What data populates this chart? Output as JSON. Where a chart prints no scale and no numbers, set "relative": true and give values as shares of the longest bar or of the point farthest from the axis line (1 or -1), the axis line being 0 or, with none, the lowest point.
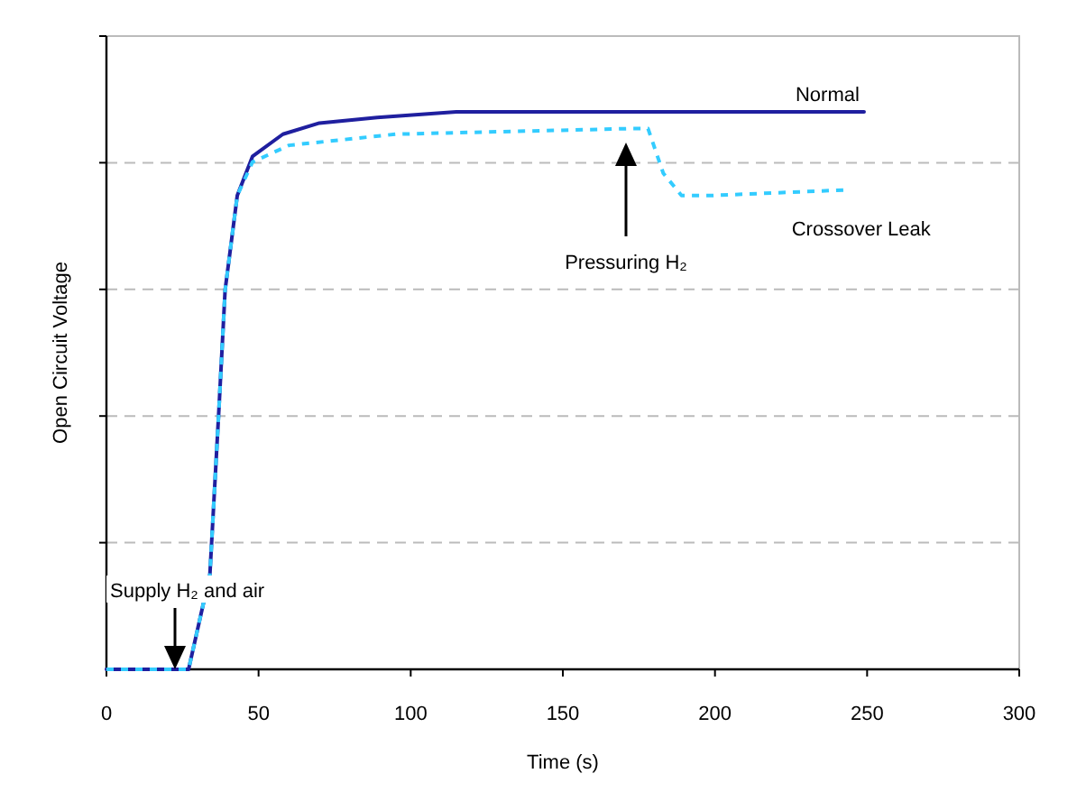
{
  "chart_data": {
    "type": "line",
    "xlabel": "Time (s)",
    "ylabel": "Open Circuit Voltage",
    "relative": true,
    "xlim": [
      0,
      300
    ],
    "xticks": [
      0,
      50,
      100,
      150,
      200,
      250,
      300
    ],
    "grid": "y",
    "series": [
      {
        "name": "Normal",
        "color": "#1f1f9f",
        "line_style": "solid",
        "x": [
          0,
          27,
          34,
          37,
          39,
          43,
          48,
          58,
          70,
          89,
          115,
          249
        ],
        "values": [
          0,
          0,
          0.17,
          0.47,
          0.68,
          0.85,
          0.92,
          0.96,
          0.98,
          0.99,
          1.0,
          1.0
        ]
      },
      {
        "name": "Crossover Leak",
        "color": "#33ccff",
        "line_style": "dotted",
        "x": [
          0,
          27,
          34,
          37,
          39,
          43,
          48,
          60,
          95,
          172,
          178,
          183,
          189,
          199,
          243
        ],
        "values": [
          0,
          0,
          0.17,
          0.47,
          0.68,
          0.85,
          0.91,
          0.94,
          0.96,
          0.97,
          0.97,
          0.89,
          0.85,
          0.85,
          0.86
        ]
      }
    ],
    "annotations": [
      "Supply H₂ and air",
      "Pressuring H₂"
    ]
  }
}
